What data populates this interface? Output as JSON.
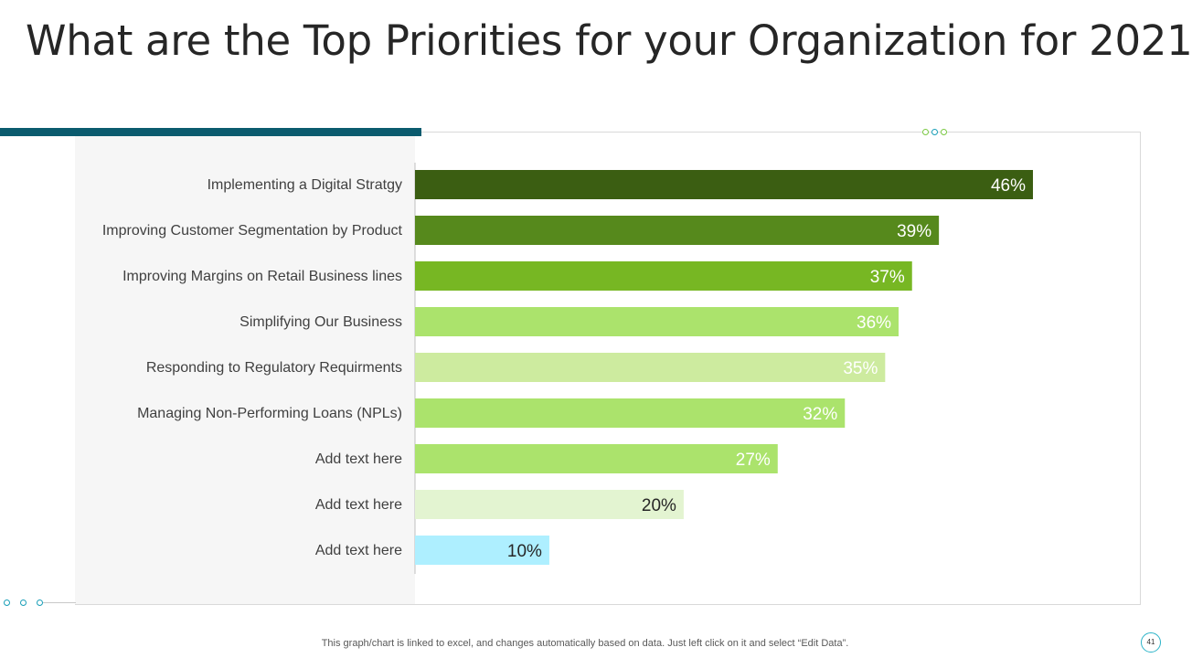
{
  "title": "What are the Top Priorities for your Organization for 2021",
  "footnote": "This graph/chart is linked to excel,  and changes automatically based on data. Just left click on it and select “Edit Data”.",
  "page_number": "41",
  "chart_data": {
    "type": "bar",
    "orientation": "horizontal",
    "categories": [
      "Implementing a Digital Stratgy",
      "Improving Customer Segmentation by Product",
      "Improving Margins on Retail Business lines",
      "Simplifying Our Business",
      "Responding to Regulatory Requirments",
      "Managing Non-Performing Loans (NPLs)",
      "Add text here",
      "Add text here",
      "Add text here"
    ],
    "values": [
      46,
      39,
      37,
      36,
      35,
      32,
      27,
      20,
      10
    ],
    "value_labels": [
      "46%",
      "39%",
      "37%",
      "36%",
      "35%",
      "32%",
      "27%",
      "20%",
      "10%"
    ],
    "bar_colors": [
      "#3b5e12",
      "#56891c",
      "#77b723",
      "#abe36c",
      "#cdeb9f",
      "#abe36c",
      "#abe36c",
      "#e3f4d1",
      "#aeefff"
    ],
    "label_colors": [
      "#ffffff",
      "#ffffff",
      "#ffffff",
      "#ffffff",
      "#ffffff",
      "#ffffff",
      "#ffffff",
      "#262626",
      "#262626"
    ],
    "xlim": [
      0,
      50
    ],
    "grid": false,
    "legend": "none"
  }
}
